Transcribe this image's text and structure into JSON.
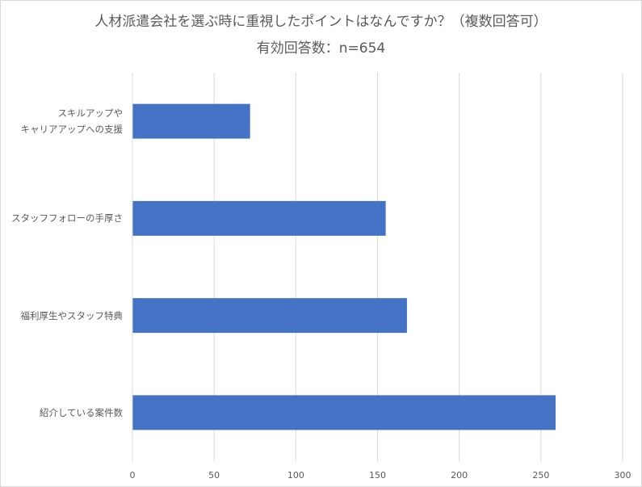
{
  "chart_data": {
    "type": "bar",
    "orientation": "horizontal",
    "title": "人材派遣会社を選ぶ時に重視したポイントはなんですか？（複数回答可）",
    "subtitle": "有効回答数：n=654",
    "categories": [
      [
        "スキルアップや",
        "キャリアアップへの支援"
      ],
      [
        "スタッフフォローの手厚さ"
      ],
      [
        "福利厚生やスタッフ特典"
      ],
      [
        "紹介している案件数"
      ]
    ],
    "values": [
      72,
      155,
      168,
      259
    ],
    "xlim": [
      0,
      300
    ],
    "ticks": [
      0,
      50,
      100,
      150,
      200,
      250,
      300
    ],
    "tick_labels": [
      "0",
      "50",
      "100",
      "150",
      "200",
      "250",
      "300"
    ],
    "grid": true,
    "legend": "none",
    "bar_color": "#4472c4",
    "grid_color": "#d9d9d9",
    "text_color": "#595959"
  }
}
